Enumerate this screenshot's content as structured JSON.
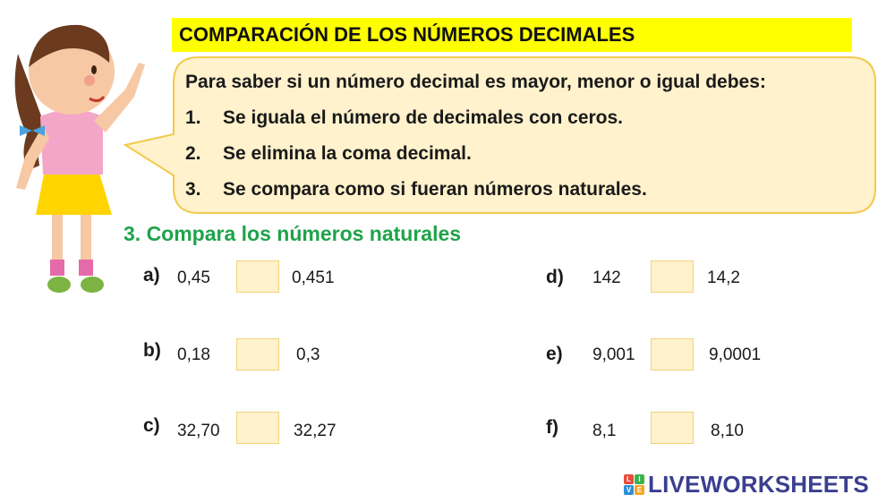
{
  "header": {
    "title": "COMPARACIÓN DE LOS NÚMEROS DECIMALES"
  },
  "bubble": {
    "intro": "Para saber si un número decimal es mayor, menor o igual debes:",
    "steps": [
      {
        "num": "1.",
        "text": "Se iguala el número de decimales con ceros."
      },
      {
        "num": "2.",
        "text": "Se elimina la coma decimal."
      },
      {
        "num": "3.",
        "text": "Se compara como si fueran números naturales."
      }
    ]
  },
  "exercise": {
    "title": "3. Compara los números naturales",
    "items": [
      {
        "letter": "a)",
        "left": "0,45",
        "right": "0,451"
      },
      {
        "letter": "b)",
        "left": "0,18",
        "right": "0,3"
      },
      {
        "letter": "c)",
        "left": "32,70",
        "right": "32,27"
      },
      {
        "letter": "d)",
        "left": "142",
        "right": "14,2"
      },
      {
        "letter": "e)",
        "left": "9,001",
        "right": "9,0001"
      },
      {
        "letter": "f)",
        "left": "8,1",
        "right": "8,10"
      }
    ]
  },
  "brand": {
    "logo_letters": [
      "L",
      "I",
      "V",
      "E"
    ],
    "logo_colors": [
      "#e94b3c",
      "#3bb54a",
      "#2f8fd8",
      "#f5a623"
    ],
    "name": "LIVEWORKSHEETS"
  }
}
